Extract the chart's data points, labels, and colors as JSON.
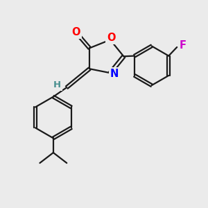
{
  "bg_color": "#ebebeb",
  "bond_color": "#1a1a1a",
  "line_width": 1.6,
  "atom_colors": {
    "O": "#ff0000",
    "N": "#0000ff",
    "F": "#cc00cc",
    "H": "#4a9090",
    "C": "#1a1a1a"
  },
  "font_size": 10.5
}
